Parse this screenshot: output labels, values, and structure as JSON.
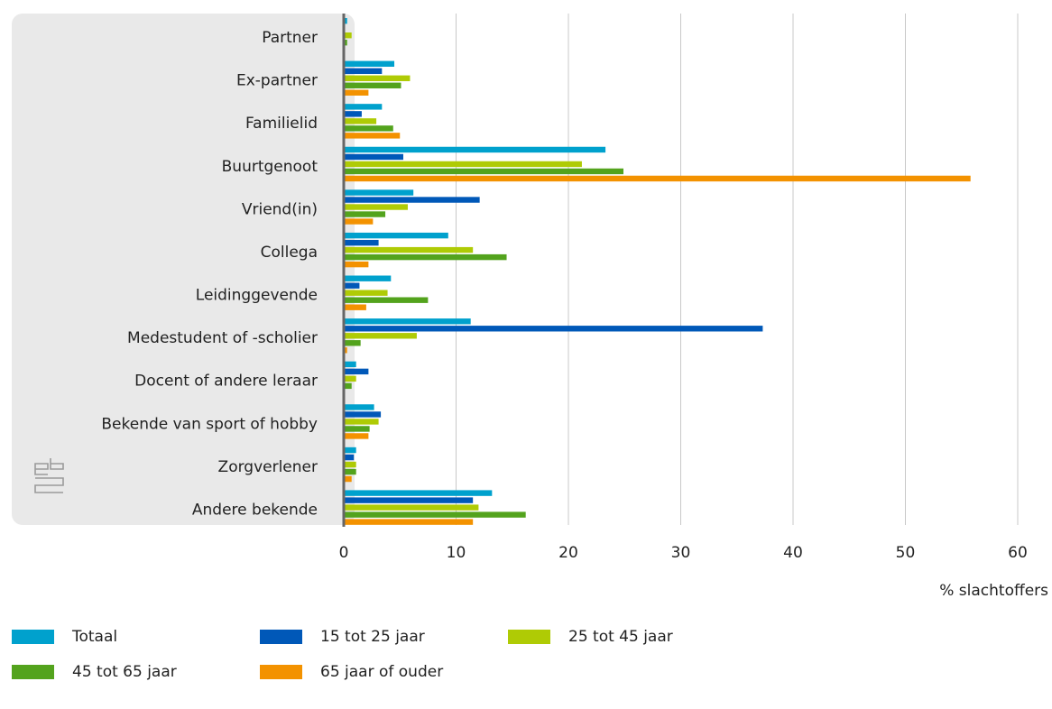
{
  "chart_data": {
    "type": "bar",
    "orientation": "horizontal",
    "x_label": "% slachtoffers",
    "categories": [
      "Partner",
      "Ex-partner",
      "Familielid",
      "Buurtgenoot",
      "Vriend(in)",
      "Collega",
      "Leidinggevende",
      "Medestudent of -scholier",
      "Docent of andere leraar",
      "Bekende van sport of hobby",
      "Zorgverlener",
      "Andere bekende"
    ],
    "series": [
      {
        "name": "Totaal",
        "color": "#00a1cd",
        "values": [
          0.3,
          4.5,
          3.4,
          23.3,
          6.2,
          9.3,
          4.2,
          11.3,
          1.1,
          2.7,
          1.1,
          13.2
        ]
      },
      {
        "name": "15 tot 25 jaar",
        "color": "#0058b8",
        "values": [
          0,
          3.4,
          1.6,
          5.3,
          12.1,
          3.1,
          1.4,
          37.3,
          2.2,
          3.3,
          0.9,
          11.5
        ]
      },
      {
        "name": "25 tot 45 jaar",
        "color": "#afcb05",
        "values": [
          0.7,
          5.9,
          2.9,
          21.2,
          5.7,
          11.5,
          3.9,
          6.5,
          1.1,
          3.1,
          1.1,
          12.0
        ]
      },
      {
        "name": "45 tot 65 jaar",
        "color": "#53a31d",
        "values": [
          0.3,
          5.1,
          4.4,
          24.9,
          3.7,
          14.5,
          7.5,
          1.5,
          0.7,
          2.3,
          1.1,
          16.2
        ]
      },
      {
        "name": "65 jaar of ouder",
        "color": "#f39200",
        "values": [
          0,
          2.2,
          5.0,
          55.8,
          2.6,
          2.2,
          2.0,
          0.3,
          0,
          2.2,
          0.7,
          11.5
        ]
      }
    ],
    "xlim": [
      0,
      60
    ],
    "xticks": [
      0,
      10,
      20,
      30,
      40,
      50,
      60
    ],
    "grid": true
  }
}
